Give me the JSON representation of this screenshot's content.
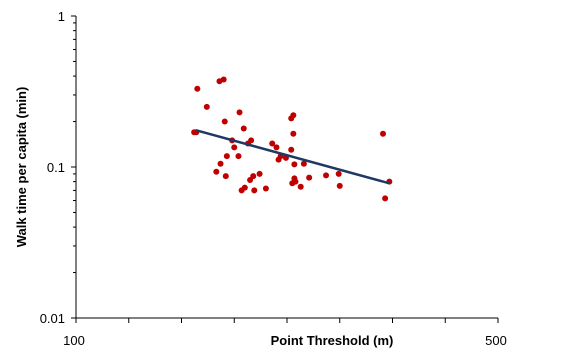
{
  "chart_data": {
    "type": "scatter",
    "title": "",
    "xlabel": "Point Threshold (m)",
    "ylabel": "Walk time per capita (min)",
    "x_scale": "linear",
    "y_scale": "log",
    "xlim": [
      100,
      500
    ],
    "ylim": [
      0.01,
      1
    ],
    "x_tick_labels": [
      {
        "value": 100,
        "label": "100"
      },
      {
        "value": 500,
        "label": "500"
      }
    ],
    "y_tick_labels": [
      {
        "value": 1,
        "label": "1"
      },
      {
        "value": 0.1,
        "label": "0.1"
      },
      {
        "value": 0.01,
        "label": "0.01"
      }
    ],
    "grid": false,
    "legend": "none",
    "series": [
      {
        "type": "scatter",
        "color": "#c00000",
        "points": [
          [
            212,
            0.17
          ],
          [
            214,
            0.17
          ],
          [
            215,
            0.33
          ],
          [
            224,
            0.25
          ],
          [
            233,
            0.093
          ],
          [
            236,
            0.37
          ],
          [
            237,
            0.105
          ],
          [
            240,
            0.38
          ],
          [
            241,
            0.2
          ],
          [
            242,
            0.087
          ],
          [
            243,
            0.118
          ],
          [
            248,
            0.15
          ],
          [
            250,
            0.135
          ],
          [
            254,
            0.118
          ],
          [
            255,
            0.23
          ],
          [
            257,
            0.07
          ],
          [
            259,
            0.18
          ],
          [
            260,
            0.073
          ],
          [
            263,
            0.143
          ],
          [
            265,
            0.082
          ],
          [
            266,
            0.15
          ],
          [
            268,
            0.087
          ],
          [
            269,
            0.07
          ],
          [
            274,
            0.09
          ],
          [
            280,
            0.072
          ],
          [
            286,
            0.143
          ],
          [
            290,
            0.135
          ],
          [
            292,
            0.112
          ],
          [
            294,
            0.118
          ],
          [
            299,
            0.115
          ],
          [
            304,
            0.21
          ],
          [
            304,
            0.13
          ],
          [
            305,
            0.078
          ],
          [
            306,
            0.22
          ],
          [
            306,
            0.166
          ],
          [
            307,
            0.104
          ],
          [
            307,
            0.084
          ],
          [
            308,
            0.08
          ],
          [
            313,
            0.074
          ],
          [
            316,
            0.105
          ],
          [
            321,
            0.085
          ],
          [
            337,
            0.088
          ],
          [
            349,
            0.09
          ],
          [
            350,
            0.075
          ],
          [
            391,
            0.166
          ],
          [
            393,
            0.062
          ],
          [
            397,
            0.08
          ]
        ]
      },
      {
        "type": "line",
        "name": "",
        "color": "#1f3864",
        "points": [
          [
            214,
            0.175
          ],
          [
            397,
            0.078
          ]
        ]
      }
    ]
  }
}
